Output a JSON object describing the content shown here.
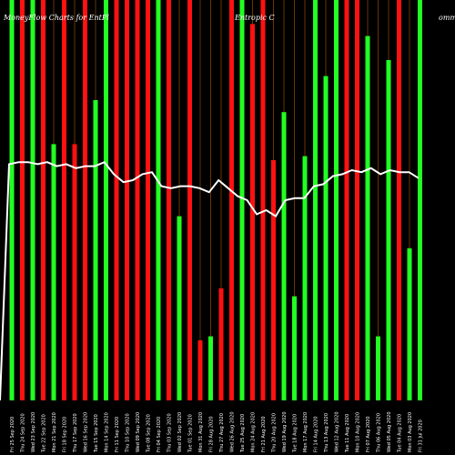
{
  "chart_data": {
    "type": "bar",
    "title_left": "MoneyFlow Charts for EntPl",
    "title_right": "Entropic C",
    "title_edge": "omm",
    "ylim": [
      0,
      100
    ],
    "bars": [
      {
        "dir": "up",
        "value": 100
      },
      {
        "dir": "down",
        "value": 100
      },
      {
        "dir": "up",
        "value": 100
      },
      {
        "dir": "down",
        "value": 100
      },
      {
        "dir": "up",
        "value": 64
      },
      {
        "dir": "down",
        "value": 100
      },
      {
        "dir": "down",
        "value": 64
      },
      {
        "dir": "down",
        "value": 100
      },
      {
        "dir": "up",
        "value": 75
      },
      {
        "dir": "up",
        "value": 100
      },
      {
        "dir": "down",
        "value": 100
      },
      {
        "dir": "down",
        "value": 100
      },
      {
        "dir": "down",
        "value": 100
      },
      {
        "dir": "down",
        "value": 100
      },
      {
        "dir": "up",
        "value": 100
      },
      {
        "dir": "down",
        "value": 100
      },
      {
        "dir": "up",
        "value": 46
      },
      {
        "dir": "down",
        "value": 100
      },
      {
        "dir": "down",
        "value": 15
      },
      {
        "dir": "up",
        "value": 16
      },
      {
        "dir": "down",
        "value": 28
      },
      {
        "dir": "down",
        "value": 100
      },
      {
        "dir": "up",
        "value": 100
      },
      {
        "dir": "down",
        "value": 94
      },
      {
        "dir": "down",
        "value": 100
      },
      {
        "dir": "down",
        "value": 60
      },
      {
        "dir": "up",
        "value": 72
      },
      {
        "dir": "up",
        "value": 26
      },
      {
        "dir": "up",
        "value": 61
      },
      {
        "dir": "up",
        "value": 100
      },
      {
        "dir": "up",
        "value": 81
      },
      {
        "dir": "up",
        "value": 100
      },
      {
        "dir": "down",
        "value": 100
      },
      {
        "dir": "down",
        "value": 100
      },
      {
        "dir": "up",
        "value": 91
      },
      {
        "dir": "up",
        "value": 16
      },
      {
        "dir": "up",
        "value": 85
      },
      {
        "dir": "down",
        "value": 100
      },
      {
        "dir": "up",
        "value": 38
      },
      {
        "dir": "up",
        "value": 100
      }
    ],
    "line": [
      59,
      59.5,
      59.5,
      59,
      59.5,
      58.5,
      59,
      58,
      58.5,
      58.5,
      59.5,
      56.5,
      54.5,
      55,
      56.5,
      57,
      53.5,
      53,
      53.5,
      53.5,
      53,
      52,
      55,
      53,
      51,
      50,
      46.5,
      47.5,
      46,
      50,
      50.5,
      50.5,
      53.5,
      54,
      56,
      56.5,
      57.5,
      57,
      58,
      56.5,
      57.5,
      57,
      57,
      55.5
    ],
    "xlabels": [
      "Fri 25 Sep 2020",
      "Thu 24 Sep 2020",
      "Wed 23 Sep 2020",
      "Tue 22 Sep 2020",
      "Mon 21 Sep 2020",
      "Fri 18 Sep 2020",
      "Thu 17 Sep 2020",
      "Wed 16 Sep 2020",
      "Tue 15 Sep 2020",
      "Mon 14 Sep 2020",
      "Fri 11 Sep 2020",
      "Thu 10 Sep 2020",
      "Wed 09 Sep 2020",
      "Tue 08 Sep 2020",
      "Fri 04 Sep 2020",
      "Thu 03 Sep 2020",
      "Wed 02 Sep 2020",
      "Tue 01 Sep 2020",
      "Mon 31 Aug 2020",
      "Fri 28 Aug 2020",
      "Thu 27 Aug 2020",
      "Wed 26 Aug 2020",
      "Tue 25 Aug 2020",
      "Mon 24 Aug 2020",
      "Fri 21 Aug 2020",
      "Thu 20 Aug 2020",
      "Wed 19 Aug 2020",
      "Tue 18 Aug 2020",
      "Mon 17 Aug 2020",
      "Fri 14 Aug 2020",
      "Thu 13 Aug 2020",
      "Wed 12 Aug 2020",
      "Tue 11 Aug 2020",
      "Mon 10 Aug 2020",
      "Fri 07 Aug 2020",
      "Thu 06 Aug 2020",
      "Wed 05 Aug 2020",
      "Tue 04 Aug 2020",
      "Mon 03 Aug 2020",
      "Fri 31 Jul 2020"
    ],
    "colors": {
      "up": "#22ff22",
      "down": "#ff1111",
      "line": "#ffffff",
      "background": "#000000",
      "thin_line": "#b05a00"
    }
  }
}
